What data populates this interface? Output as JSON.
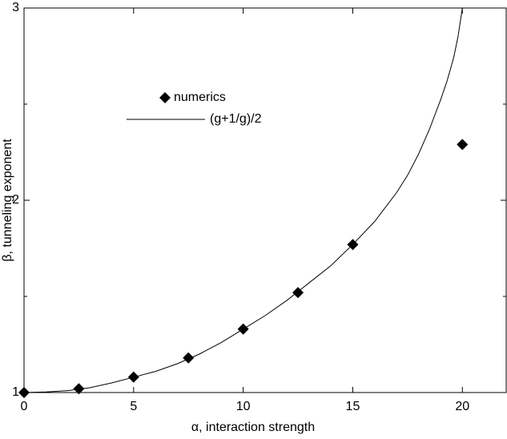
{
  "chart_data": {
    "type": "scatter-line",
    "x_label": "α, interaction strength",
    "y_label": "β, tunneling exponent",
    "xlim": [
      0,
      22
    ],
    "ylim": [
      1,
      3
    ],
    "xticks": [
      0,
      5,
      10,
      15,
      20
    ],
    "yticks": [
      1,
      2,
      3
    ],
    "y_minor_ticks": [
      1.5,
      2.5
    ],
    "legend": "upper left",
    "series": [
      {
        "name": "numerics",
        "kind": "markers",
        "color": "#000000",
        "x": [
          0,
          2.5,
          5,
          7.5,
          10,
          12.5,
          15,
          20
        ],
        "values": [
          1.0,
          1.02,
          1.08,
          1.18,
          1.33,
          1.52,
          1.77,
          2.29
        ]
      },
      {
        "name": "(g+1/g)/2",
        "kind": "line",
        "color": "#000000",
        "x": [
          0,
          1,
          2,
          3,
          4,
          5,
          6,
          7,
          8,
          9,
          10,
          11,
          12,
          13,
          14,
          15,
          16,
          17,
          17.5,
          18,
          18.5,
          19,
          19.3,
          19.6,
          19.8,
          20
        ],
        "values": [
          1.0,
          1.003,
          1.01,
          1.025,
          1.05,
          1.08,
          1.11,
          1.15,
          1.2,
          1.26,
          1.33,
          1.4,
          1.48,
          1.57,
          1.66,
          1.77,
          1.89,
          2.04,
          2.13,
          2.24,
          2.37,
          2.52,
          2.62,
          2.74,
          2.85,
          3.0
        ]
      }
    ]
  }
}
